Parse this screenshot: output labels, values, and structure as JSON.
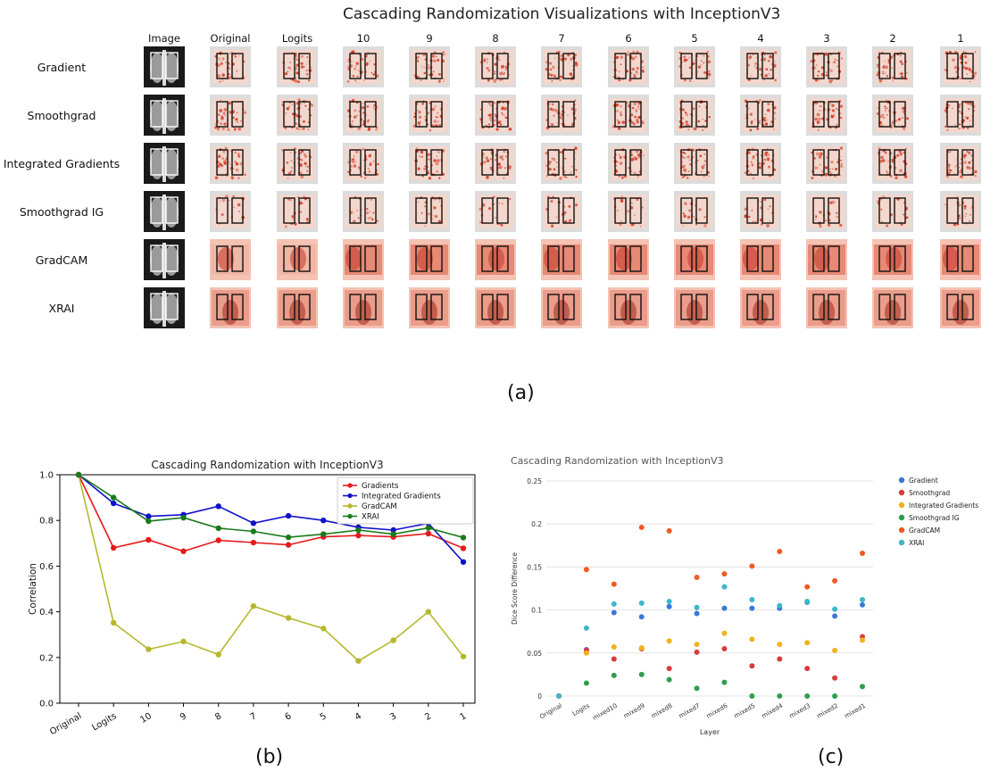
{
  "panel_a": {
    "title": "Cascading Randomization Visualizations with InceptionV3",
    "columns": [
      "Image",
      "Original",
      "Logits",
      "10",
      "9",
      "8",
      "7",
      "6",
      "5",
      "4",
      "3",
      "2",
      "1"
    ],
    "rows": [
      "Gradient",
      "Smoothgrad",
      "Integrated Gradients",
      "Smoothgrad IG",
      "GradCAM",
      "XRAI"
    ],
    "caption": "(a)"
  },
  "panel_b_caption": "(b)",
  "panel_c_caption": "(c)",
  "chart_data": [
    {
      "type": "line",
      "title": "Cascading Randomization with InceptionV3",
      "xlabel": "",
      "ylabel": "Correlation",
      "categories": [
        "Original",
        "Logits",
        "10",
        "9",
        "8",
        "7",
        "6",
        "5",
        "4",
        "3",
        "2",
        "1"
      ],
      "ylim": [
        0.0,
        1.0
      ],
      "yticks": [
        "0.0",
        "0.2",
        "0.4",
        "0.6",
        "0.8",
        "1.0"
      ],
      "legend_position": "top-right",
      "grid": false,
      "series": [
        {
          "name": "Gradients",
          "color": "#e41a1c",
          "values": [
            1.0,
            0.68,
            0.715,
            0.665,
            0.713,
            0.703,
            0.693,
            0.728,
            0.734,
            0.728,
            0.742,
            0.678
          ]
        },
        {
          "name": "Integrated Gradients",
          "color": "#1111cc",
          "values": [
            1.0,
            0.875,
            0.818,
            0.825,
            0.862,
            0.788,
            0.82,
            0.8,
            0.77,
            0.758,
            0.787,
            0.618
          ]
        },
        {
          "name": "GradCAM",
          "color": "#b5b82c",
          "values": [
            1.0,
            0.352,
            0.236,
            0.27,
            0.213,
            0.425,
            0.373,
            0.327,
            0.185,
            0.275,
            0.4,
            0.204
          ]
        },
        {
          "name": "XRAI",
          "color": "#1a7a1a",
          "values": [
            1.0,
            0.9,
            0.797,
            0.812,
            0.766,
            0.752,
            0.726,
            0.74,
            0.758,
            0.74,
            0.767,
            0.725
          ]
        }
      ]
    },
    {
      "type": "scatter",
      "title": "Cascading Randomization with InceptionV3",
      "xlabel": "Layer",
      "ylabel": "Dice Score Difference",
      "categories": [
        "Original",
        "Logits",
        "mixed10",
        "mixed9",
        "mixed8",
        "mixed7",
        "mixed6",
        "mixed5",
        "mixed4",
        "mixed3",
        "mixed2",
        "mixed1"
      ],
      "ylim": [
        0,
        0.25
      ],
      "yticks": [
        "0",
        "0.05",
        "0.1",
        "0.15",
        "0.2",
        "0.25"
      ],
      "legend_position": "right",
      "grid": true,
      "series": [
        {
          "name": "Gradient",
          "color": "#3a78d8",
          "values": [
            0,
            0.054,
            0.097,
            0.092,
            0.104,
            0.096,
            0.102,
            0.102,
            0.102,
            0.109,
            0.093,
            0.106
          ]
        },
        {
          "name": "Smoothgrad",
          "color": "#d93b3b",
          "values": [
            0,
            0.053,
            0.043,
            0.055,
            0.032,
            0.051,
            0.055,
            0.035,
            0.043,
            0.032,
            0.021,
            0.069
          ]
        },
        {
          "name": "Integrated Gradients",
          "color": "#f2b21b",
          "values": [
            0,
            0.05,
            0.057,
            0.056,
            0.064,
            0.06,
            0.073,
            0.066,
            0.06,
            0.062,
            0.053,
            0.065
          ]
        },
        {
          "name": "Smoothgrad IG",
          "color": "#2e9e4a",
          "values": [
            0,
            0.015,
            0.024,
            0.025,
            0.019,
            0.009,
            0.016,
            0.0,
            0.0,
            0.0,
            0.0,
            0.011
          ]
        },
        {
          "name": "GradCAM",
          "color": "#f05a22",
          "values": [
            0,
            0.147,
            0.13,
            0.196,
            0.192,
            0.138,
            0.142,
            0.151,
            0.168,
            0.127,
            0.134,
            0.166
          ]
        },
        {
          "name": "XRAI",
          "color": "#3cb6c8",
          "values": [
            0,
            0.079,
            0.107,
            0.108,
            0.11,
            0.103,
            0.127,
            0.112,
            0.105,
            0.11,
            0.101,
            0.112
          ]
        }
      ]
    }
  ]
}
